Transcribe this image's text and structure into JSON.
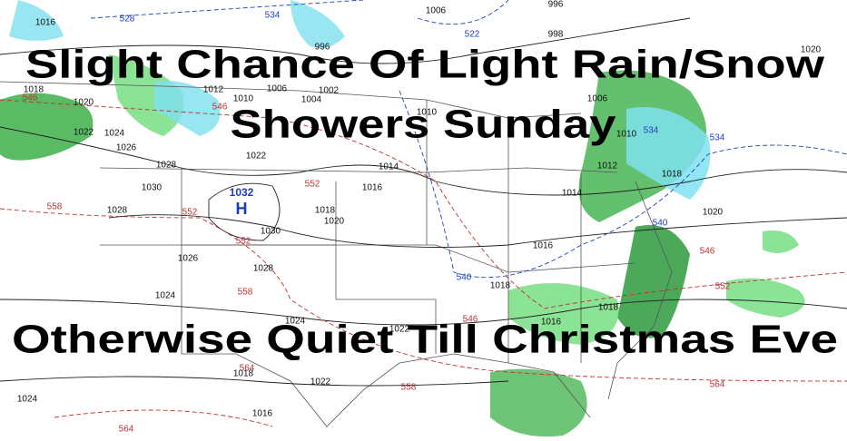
{
  "headline": [
    "Slight Chance Of Light Rain/Snow",
    "Showers Sunday",
    "Otherwise Quiet Till Christmas Eve"
  ],
  "high_center": {
    "pressure": "1032",
    "symbol": "H"
  },
  "isobar_labels": [
    "1016",
    "996",
    "1006",
    "998",
    "996",
    "1020",
    "1018",
    "1020",
    "1012",
    "1010",
    "1006",
    "1002",
    "1004",
    "1010",
    "1006",
    "1022",
    "1024",
    "1026",
    "1028",
    "1030",
    "1028",
    "1022",
    "1014",
    "1016",
    "1010",
    "1012",
    "1018",
    "1014",
    "1018",
    "1020",
    "1030",
    "1026",
    "1028",
    "1016",
    "1020",
    "1024",
    "1018",
    "1018",
    "1024",
    "1016",
    "1022",
    "1018",
    "1022",
    "1024",
    "1016"
  ],
  "thickness_labels_red": [
    "546",
    "546",
    "552",
    "552",
    "552",
    "558",
    "558",
    "546",
    "546",
    "552",
    "558",
    "564",
    "564",
    "564"
  ],
  "thickness_labels_blue": [
    "528",
    "534",
    "522",
    "534",
    "534",
    "540",
    "540"
  ]
}
